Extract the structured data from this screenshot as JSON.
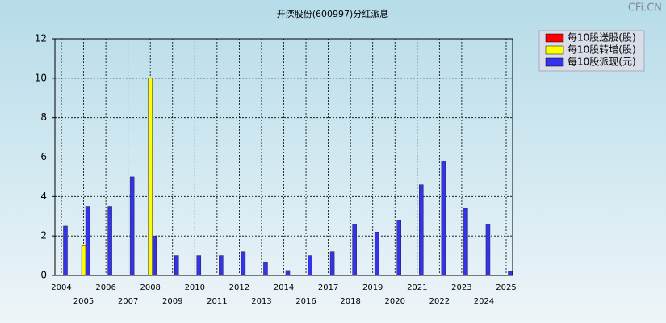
{
  "chart_data": {
    "type": "bar",
    "title": "开滦股份(600997)分红派息",
    "watermark": "CFi.CN",
    "categories": [
      "2004",
      "2005",
      "2006",
      "2007",
      "2008",
      "2009",
      "2010",
      "2011",
      "2012",
      "2013",
      "2014",
      "2016",
      "2017",
      "2018",
      "2019",
      "2020",
      "2021",
      "2022",
      "2023",
      "2024",
      "2025"
    ],
    "series": [
      {
        "name": "每10股送股(股)",
        "color": "#ff0000",
        "values": [
          null,
          null,
          null,
          null,
          null,
          null,
          null,
          null,
          null,
          null,
          null,
          null,
          null,
          null,
          null,
          null,
          null,
          null,
          null,
          null,
          null
        ]
      },
      {
        "name": "每10股转增(股)",
        "color": "#ffff00",
        "values": [
          null,
          1.5,
          null,
          null,
          10,
          null,
          null,
          null,
          null,
          null,
          null,
          null,
          null,
          null,
          null,
          null,
          null,
          null,
          null,
          null,
          null
        ]
      },
      {
        "name": "每10股派现(元)",
        "color": "#3333ee",
        "values": [
          2.5,
          3.5,
          3.5,
          5,
          2,
          1,
          1,
          1,
          1.2,
          0.65,
          0.25,
          1,
          1.2,
          2.6,
          2.2,
          2.8,
          4.6,
          5.8,
          3.4,
          2.6,
          0.2
        ]
      }
    ],
    "ylim": [
      0,
      12
    ],
    "yticks": [
      0,
      2,
      4,
      6,
      8,
      10,
      12
    ],
    "grid": true,
    "legend": "top-right"
  }
}
